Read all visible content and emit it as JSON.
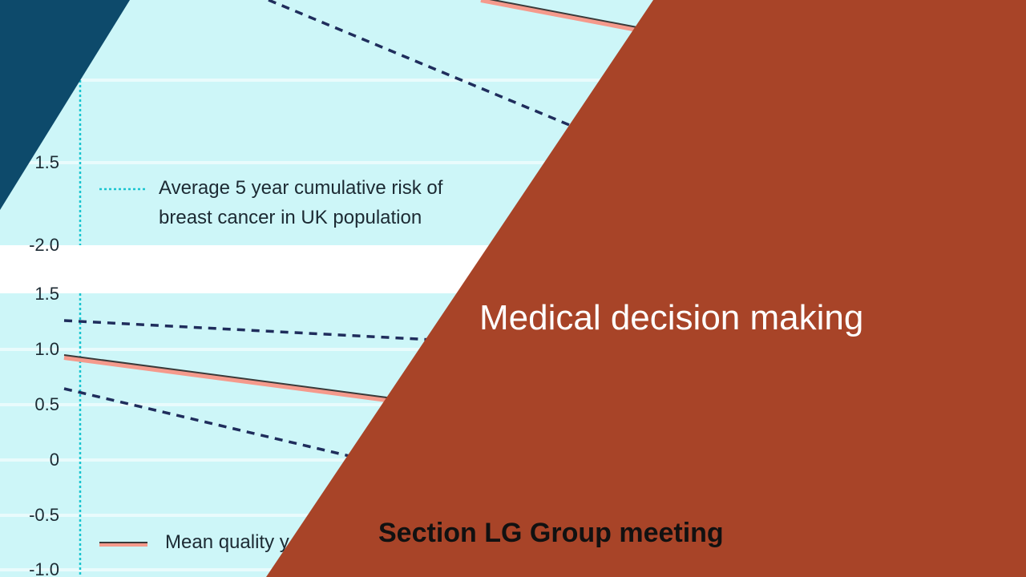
{
  "chart": {
    "ticks_upper": [
      "1.5",
      "-2.0"
    ],
    "ticks_lower": [
      "1.5",
      "1.0",
      "0.5",
      "0",
      "-0.5",
      "-1.0"
    ],
    "legend_risk_line1": "Average 5 year cumulative risk of",
    "legend_risk_line2": "breast cancer in UK population",
    "legend_mean": "Mean quality y"
  },
  "slide": {
    "title": "Medical decision making",
    "subtitle": "Section LG Group meeting"
  },
  "colors": {
    "panel_bg": "#cdf6f8",
    "dashed_line": "#1f2d5c",
    "mean_line": "#f59a8c",
    "teal_corner": "#0d4a6b",
    "rust_panel": "#a84428"
  }
}
